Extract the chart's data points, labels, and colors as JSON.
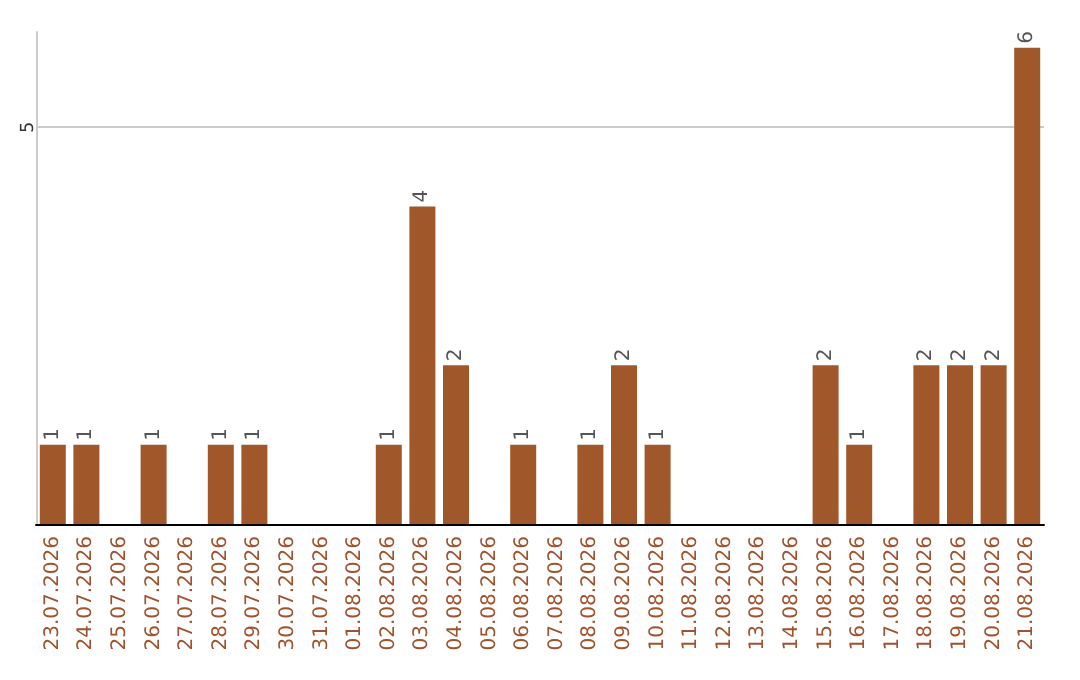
{
  "chart_data": {
    "type": "bar",
    "categories": [
      "23.07.2026",
      "24.07.2026",
      "25.07.2026",
      "26.07.2026",
      "27.07.2026",
      "28.07.2026",
      "29.07.2026",
      "30.07.2026",
      "31.07.2026",
      "01.08.2026",
      "02.08.2026",
      "03.08.2026",
      "04.08.2026",
      "05.08.2026",
      "06.08.2026",
      "07.08.2026",
      "08.08.2026",
      "09.08.2026",
      "10.08.2026",
      "11.08.2026",
      "12.08.2026",
      "13.08.2026",
      "14.08.2026",
      "15.08.2026",
      "16.08.2026",
      "17.08.2026",
      "18.08.2026",
      "19.08.2026",
      "20.08.2026",
      "21.08.2026"
    ],
    "values": [
      1,
      1,
      0,
      1,
      0,
      1,
      1,
      0,
      0,
      0,
      1,
      4,
      2,
      0,
      1,
      0,
      1,
      2,
      1,
      0,
      0,
      0,
      0,
      2,
      1,
      0,
      2,
      2,
      2,
      6
    ],
    "value_labels": [
      "1",
      "1",
      null,
      "1",
      null,
      "1",
      "1",
      null,
      null,
      null,
      "1",
      "4",
      "2",
      null,
      "1",
      null,
      "1",
      "2",
      "1",
      null,
      null,
      null,
      null,
      "2",
      "1",
      null,
      "2",
      "2",
      "2",
      "6"
    ],
    "color": "#a0582a",
    "ylim": [
      0,
      6.2
    ],
    "yticks": [
      5
    ],
    "grid": "y"
  }
}
